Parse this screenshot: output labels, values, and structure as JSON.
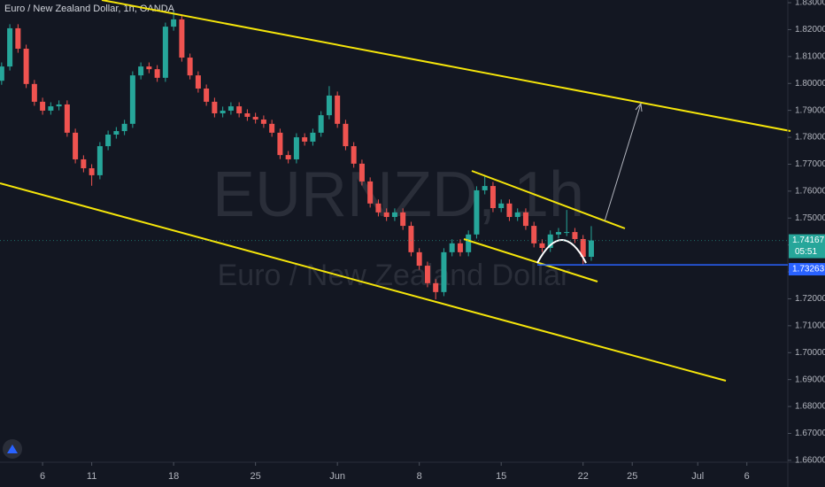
{
  "chart_data": {
    "type": "candlestick",
    "title": "Euro / New Zealand Dollar, 1h, OANDA",
    "watermark_symbol": "EURNZD, 1h",
    "watermark_name": "Euro / New Zealand Dollar",
    "x": [
      -2.5,
      -2,
      -1.5,
      -1,
      -0.5,
      0,
      0.5,
      1,
      1.5,
      2,
      2.5,
      3,
      3.5,
      4,
      4.5,
      5,
      5.5,
      6,
      6.5,
      7,
      7.5,
      8,
      8.5,
      9,
      9.5,
      10,
      10.5,
      11,
      11.5,
      12,
      12.5,
      13,
      13.5,
      14,
      14.5,
      15,
      15.5,
      16,
      16.5,
      17,
      17.5,
      18,
      18.5,
      19,
      19.5,
      20,
      20.5,
      21,
      21.5,
      22,
      22.5,
      23,
      23.5,
      24,
      24.5,
      25,
      25.5,
      26,
      26.5,
      27,
      27.5,
      28,
      28.5,
      29,
      29.5,
      30,
      30.5,
      31,
      31.5,
      32,
      32.5,
      33,
      33.5
    ],
    "open": [
      1.801,
      1.8063,
      1.8205,
      1.8129,
      1.7998,
      1.7932,
      1.7899,
      1.7915,
      1.7922,
      1.7817,
      1.7718,
      1.7685,
      1.7659,
      1.7767,
      1.781,
      1.7823,
      1.785,
      1.803,
      1.8063,
      1.8053,
      1.8021,
      1.8211,
      1.8238,
      1.8096,
      1.803,
      1.7981,
      1.7932,
      1.7889,
      1.7899,
      1.7915,
      1.7889,
      1.7876,
      1.7866,
      1.785,
      1.7817,
      1.7734,
      1.7718,
      1.78,
      1.7784,
      1.7817,
      1.7882,
      1.7955,
      1.785,
      1.7767,
      1.7702,
      1.7636,
      1.7554,
      1.7521,
      1.7504,
      1.7521,
      1.7471,
      1.7373,
      1.7323,
      1.7258,
      1.7225,
      1.7373,
      1.7406,
      1.7373,
      1.7439,
      1.7603,
      1.7619,
      1.7537,
      1.7554,
      1.7504,
      1.7521,
      1.7471,
      1.7406,
      1.7389,
      1.7439,
      1.7448,
      1.7448,
      1.7422,
      1.7356
    ],
    "high": [
      1.8078,
      1.822,
      1.822,
      1.8144,
      1.8013,
      1.7947,
      1.793,
      1.7937,
      1.7937,
      1.7832,
      1.7733,
      1.77,
      1.7782,
      1.7825,
      1.7838,
      1.7865,
      1.8045,
      1.8078,
      1.8078,
      1.8068,
      1.8226,
      1.8268,
      1.8253,
      1.8111,
      1.8045,
      1.7996,
      1.7947,
      1.7914,
      1.793,
      1.793,
      1.7904,
      1.7891,
      1.7881,
      1.7865,
      1.7832,
      1.7749,
      1.7815,
      1.7815,
      1.7832,
      1.7897,
      1.799,
      1.797,
      1.7865,
      1.7782,
      1.7717,
      1.7651,
      1.7569,
      1.7536,
      1.7536,
      1.7536,
      1.7486,
      1.7388,
      1.7338,
      1.7273,
      1.7388,
      1.7421,
      1.7421,
      1.7454,
      1.7618,
      1.7655,
      1.7634,
      1.7569,
      1.7569,
      1.7536,
      1.7536,
      1.7486,
      1.7421,
      1.7454,
      1.7463,
      1.753,
      1.7463,
      1.7437,
      1.747
    ],
    "low": [
      1.7995,
      1.8048,
      1.8114,
      1.7983,
      1.7917,
      1.7884,
      1.7884,
      1.79,
      1.7802,
      1.7703,
      1.767,
      1.762,
      1.7644,
      1.7752,
      1.7795,
      1.7808,
      1.7835,
      1.8015,
      1.8038,
      1.8006,
      1.8006,
      1.8196,
      1.8081,
      1.8015,
      1.7966,
      1.7917,
      1.7874,
      1.7874,
      1.7884,
      1.7874,
      1.7861,
      1.7851,
      1.7835,
      1.7802,
      1.7719,
      1.7703,
      1.7703,
      1.7769,
      1.7769,
      1.7802,
      1.7867,
      1.7835,
      1.7752,
      1.7687,
      1.7621,
      1.7539,
      1.7506,
      1.7489,
      1.7489,
      1.7456,
      1.7358,
      1.7308,
      1.7243,
      1.7198,
      1.721,
      1.7358,
      1.7358,
      1.7358,
      1.7424,
      1.7588,
      1.7522,
      1.7522,
      1.7489,
      1.7489,
      1.7456,
      1.7391,
      1.7374,
      1.7374,
      1.7424,
      1.7433,
      1.7407,
      1.7326,
      1.7341
    ],
    "close": [
      1.8063,
      1.8205,
      1.8129,
      1.7998,
      1.7932,
      1.7899,
      1.7915,
      1.7922,
      1.7817,
      1.7718,
      1.7685,
      1.7659,
      1.7767,
      1.781,
      1.7823,
      1.785,
      1.803,
      1.8063,
      1.8053,
      1.8021,
      1.8211,
      1.8238,
      1.8096,
      1.803,
      1.7981,
      1.7932,
      1.7889,
      1.7899,
      1.7915,
      1.7889,
      1.7876,
      1.7866,
      1.785,
      1.7817,
      1.7734,
      1.7718,
      1.78,
      1.7784,
      1.7817,
      1.7882,
      1.7955,
      1.785,
      1.7767,
      1.7702,
      1.7636,
      1.7554,
      1.7521,
      1.7504,
      1.7521,
      1.7471,
      1.7373,
      1.7323,
      1.7258,
      1.7225,
      1.7373,
      1.7406,
      1.7373,
      1.7439,
      1.7603,
      1.7619,
      1.7537,
      1.7554,
      1.7504,
      1.7521,
      1.7471,
      1.7406,
      1.7389,
      1.7439,
      1.7448,
      1.7448,
      1.7422,
      1.7356,
      1.74167
    ],
    "up_color": "#26a69a",
    "down_color": "#ef5350",
    "xlim": [
      -2.6,
      45.5
    ],
    "xticks": [
      {
        "value": 0,
        "label": "6"
      },
      {
        "value": 3,
        "label": "11"
      },
      {
        "value": 8,
        "label": "18"
      },
      {
        "value": 13,
        "label": "25"
      },
      {
        "value": 18,
        "label": "Jun"
      },
      {
        "value": 23,
        "label": "8"
      },
      {
        "value": 28,
        "label": "15"
      },
      {
        "value": 33,
        "label": "22"
      },
      {
        "value": 36,
        "label": "25"
      },
      {
        "value": 40,
        "label": "Jul"
      },
      {
        "value": 43,
        "label": "6"
      }
    ],
    "ylim": [
      1.6593,
      1.831
    ],
    "yticks": [
      {
        "value": 1.83,
        "label": "1.83000"
      },
      {
        "value": 1.82,
        "label": "1.82000"
      },
      {
        "value": 1.81,
        "label": "1.81000"
      },
      {
        "value": 1.8,
        "label": "1.80000"
      },
      {
        "value": 1.79,
        "label": "1.79000"
      },
      {
        "value": 1.78,
        "label": "1.78000"
      },
      {
        "value": 1.77,
        "label": "1.77000"
      },
      {
        "value": 1.76,
        "label": "1.76000"
      },
      {
        "value": 1.75,
        "label": "1.75000"
      },
      {
        "value": 1.74,
        "label": "1.74000"
      },
      {
        "value": 1.73,
        "label": "1.73000"
      },
      {
        "value": 1.72,
        "label": "1.72000"
      },
      {
        "value": 1.71,
        "label": "1.71000"
      },
      {
        "value": 1.7,
        "label": "1.70000"
      },
      {
        "value": 1.69,
        "label": "1.69000"
      },
      {
        "value": 1.68,
        "label": "1.68000"
      },
      {
        "value": 1.67,
        "label": "1.67000"
      },
      {
        "value": 1.66,
        "label": "1.66000"
      }
    ],
    "grid": false,
    "last_price": 1.74167,
    "countdown": "05:51",
    "level_line": 1.73263,
    "level_color": "#2962ff"
  }
}
